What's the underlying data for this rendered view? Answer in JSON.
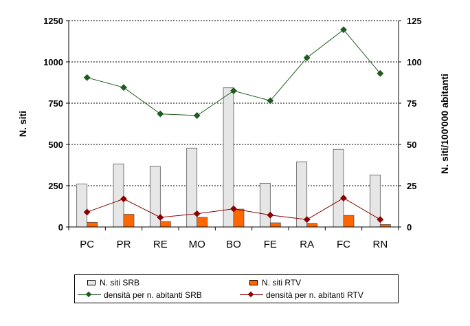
{
  "chart_data": {
    "type": "bar",
    "categories": [
      "PC",
      "PR",
      "RE",
      "MO",
      "BO",
      "FE",
      "RA",
      "FC",
      "RN"
    ],
    "series": [
      {
        "name": "N. siti SRB",
        "kind": "bar",
        "axis": "left",
        "color": "#e6e6e6",
        "values": [
          260,
          382,
          367,
          478,
          843,
          265,
          395,
          470,
          315
        ]
      },
      {
        "name": "N. siti RTV",
        "kind": "bar",
        "axis": "left",
        "color": "#ff6600",
        "values": [
          28,
          77,
          33,
          58,
          108,
          25,
          22,
          70,
          15
        ]
      },
      {
        "name": "densità per n. abitanti SRB",
        "kind": "line",
        "axis": "right",
        "color": "#1f5c1f",
        "values": [
          90.5,
          84.5,
          68.5,
          67.5,
          82.5,
          76.5,
          102.5,
          119.5,
          93.0
        ]
      },
      {
        "name": "densità per n. abitanti RTV",
        "kind": "line",
        "axis": "right",
        "color": "#8b0000",
        "values": [
          9.0,
          17.0,
          5.8,
          8.0,
          11.0,
          7.2,
          4.5,
          17.5,
          4.5
        ]
      }
    ],
    "ylabel": "N. siti",
    "y2label": "N. siti/100'000 abitanti",
    "ylim": [
      0,
      1250
    ],
    "y2lim": [
      0,
      125
    ],
    "yticks": [
      "0",
      "250",
      "500",
      "750",
      "1000",
      "1250"
    ],
    "y2ticks": [
      "0",
      "25",
      "50",
      "75",
      "100",
      "125"
    ],
    "grid": "horizontal dashed",
    "legend_position": "bottom"
  }
}
